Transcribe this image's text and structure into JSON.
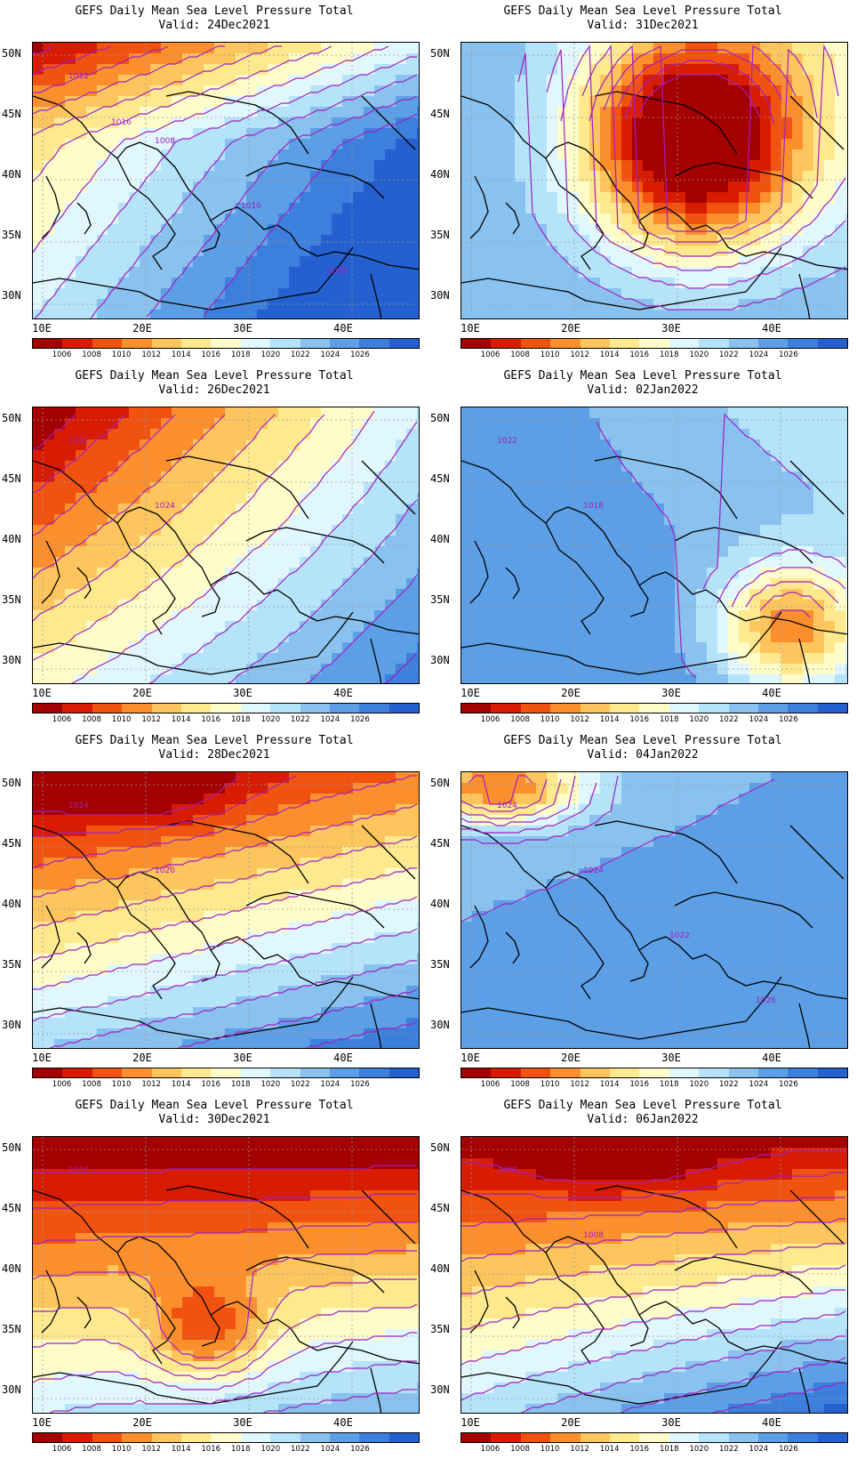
{
  "figure": {
    "panels": [
      {
        "title": "GEFS Daily Mean Sea Level Pressure Total",
        "valid": "Valid: 24Dec2021",
        "regime": "high-east",
        "contour_labels": [
          "1012",
          "1008",
          "1010",
          "1008",
          "1016"
        ]
      },
      {
        "title": "GEFS Daily Mean Sea Level Pressure Total",
        "valid": "Valid: 31Dec2021",
        "regime": "low-east",
        "contour_labels": []
      },
      {
        "title": "GEFS Daily Mean Sea Level Pressure Total",
        "valid": "Valid: 26Dec2021",
        "regime": "high-southeast",
        "contour_labels": [
          "1022",
          "1024"
        ]
      },
      {
        "title": "GEFS Daily Mean Sea Level Pressure Total",
        "valid": "Valid: 02Jan2022",
        "regime": "high-west",
        "contour_labels": [
          "1022",
          "1018"
        ]
      },
      {
        "title": "GEFS Daily Mean Sea Level Pressure Total",
        "valid": "Valid: 28Dec2021",
        "regime": "low-north",
        "contour_labels": [
          "1014",
          "1020"
        ]
      },
      {
        "title": "GEFS Daily Mean Sea Level Pressure Total",
        "valid": "Valid: 04Jan2022",
        "regime": "high-wide",
        "contour_labels": [
          "1024",
          "1024",
          "1022",
          "1026"
        ]
      },
      {
        "title": "GEFS Daily Mean Sea Level Pressure Total",
        "valid": "Valid: 30Dec2021",
        "regime": "low-deep",
        "contour_labels": [
          "1010"
        ]
      },
      {
        "title": "GEFS Daily Mean Sea Level Pressure Total",
        "valid": "Valid: 06Jan2022",
        "regime": "low-north2",
        "contour_labels": [
          "1008",
          "1008"
        ]
      }
    ],
    "lat_labels": [
      "50N",
      "45N",
      "40N",
      "35N",
      "30N"
    ],
    "lon_labels": [
      "10E",
      "20E",
      "30E",
      "40E"
    ],
    "colorbar": {
      "labels": [
        "1006",
        "1008",
        "1010",
        "1012",
        "1014",
        "1016",
        "1018",
        "1020",
        "1022",
        "1024",
        "1026"
      ],
      "colors": [
        "#a50000",
        "#d81c04",
        "#f25210",
        "#fb8f2e",
        "#fdc55d",
        "#fee98f",
        "#fffcc9",
        "#e0f8fd",
        "#b5e3fa",
        "#8ac2ef",
        "#5d9fe6",
        "#3c7fdc",
        "#2560d0"
      ]
    },
    "contour_color": "#a020c0",
    "coast_color": "#000000"
  }
}
